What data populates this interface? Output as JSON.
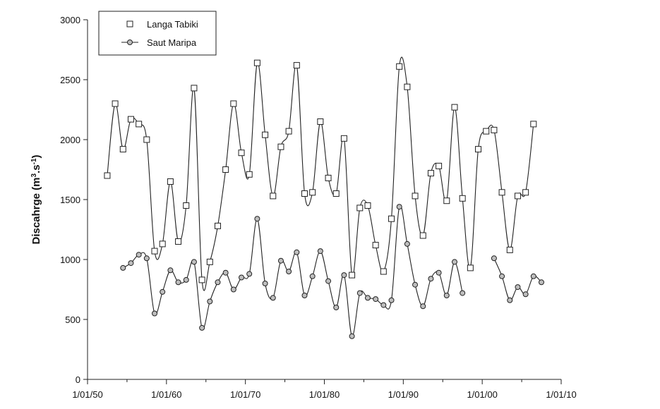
{
  "chart_data": {
    "type": "line",
    "title": "",
    "xlabel": "",
    "ylabel": "Discahrge (m3.s-1)",
    "ylabel_parts": {
      "main": "Discahrge (m",
      "sup1": "3",
      "mid": ".s",
      "sup2": "-1",
      "end": ")"
    },
    "xlim": [
      "1950-01-01",
      "2010-01-01"
    ],
    "ylim": [
      0,
      3000
    ],
    "x_ticks": [
      {
        "date": "1950-01-01",
        "label": "1/01/50"
      },
      {
        "date": "1960-01-01",
        "label": "1/01/60"
      },
      {
        "date": "1970-01-01",
        "label": "1/01/70"
      },
      {
        "date": "1980-01-01",
        "label": "1/01/80"
      },
      {
        "date": "1990-01-01",
        "label": "1/01/90"
      },
      {
        "date": "2000-01-01",
        "label": "1/01/00"
      },
      {
        "date": "2010-01-01",
        "label": "1/01/10"
      }
    ],
    "y_ticks": [
      "0",
      "500",
      "1000",
      "1500",
      "2000",
      "2500",
      "3000"
    ],
    "grid": false,
    "legend_position": "top-left",
    "series": [
      {
        "name": "Langa Tabiki",
        "marker": "square",
        "segments": [
          [
            [
              "1952-07-01",
              1700
            ],
            [
              "1953-07-01",
              2300
            ],
            [
              "1954-07-01",
              1920
            ],
            [
              "1955-07-01",
              2170
            ],
            [
              "1956-07-01",
              2130
            ],
            [
              "1957-07-01",
              2000
            ],
            [
              "1958-07-01",
              1070
            ],
            [
              "1959-07-01",
              1130
            ],
            [
              "1960-07-01",
              1650
            ],
            [
              "1961-07-01",
              1150
            ],
            [
              "1962-07-01",
              1450
            ],
            [
              "1963-07-01",
              2430
            ],
            [
              "1964-07-01",
              830
            ],
            [
              "1965-07-01",
              980
            ],
            [
              "1966-07-01",
              1280
            ],
            [
              "1967-07-01",
              1750
            ],
            [
              "1968-07-01",
              2300
            ],
            [
              "1969-07-01",
              1890
            ],
            [
              "1970-07-01",
              1710
            ],
            [
              "1971-07-01",
              2640
            ],
            [
              "1972-07-01",
              2040
            ],
            [
              "1973-07-01",
              1530
            ],
            [
              "1974-07-01",
              1940
            ],
            [
              "1975-07-01",
              2070
            ],
            [
              "1976-07-01",
              2620
            ],
            [
              "1977-07-01",
              1550
            ],
            [
              "1978-07-01",
              1560
            ],
            [
              "1979-07-01",
              2150
            ],
            [
              "1980-07-01",
              1680
            ],
            [
              "1981-07-01",
              1550
            ],
            [
              "1982-07-01",
              2010
            ],
            [
              "1983-07-01",
              870
            ],
            [
              "1984-07-01",
              1430
            ],
            [
              "1985-07-01",
              1450
            ],
            [
              "1986-07-01",
              1120
            ],
            [
              "1987-07-01",
              900
            ],
            [
              "1988-07-01",
              1340
            ],
            [
              "1989-07-01",
              2610
            ],
            [
              "1990-07-01",
              2440
            ],
            [
              "1991-07-01",
              1530
            ],
            [
              "1992-07-01",
              1200
            ],
            [
              "1993-07-01",
              1720
            ],
            [
              "1994-07-01",
              1780
            ],
            [
              "1995-07-01",
              1490
            ],
            [
              "1996-07-01",
              2270
            ],
            [
              "1997-07-01",
              1510
            ],
            [
              "1998-07-01",
              930
            ],
            [
              "1999-07-01",
              1920
            ],
            [
              "2000-07-01",
              2070
            ],
            [
              "2001-07-01",
              2080
            ],
            [
              "2002-07-01",
              1560
            ],
            [
              "2003-07-01",
              1080
            ],
            [
              "2004-07-01",
              1530
            ],
            [
              "2005-07-01",
              1560
            ],
            [
              "2006-07-01",
              2130
            ]
          ]
        ]
      },
      {
        "name": "Saut Maripa",
        "marker": "circle",
        "segments": [
          [
            [
              "1954-07-01",
              930
            ],
            [
              "1955-07-01",
              970
            ],
            [
              "1956-07-01",
              1040
            ],
            [
              "1957-07-01",
              1010
            ],
            [
              "1958-07-01",
              550
            ],
            [
              "1959-07-01",
              730
            ],
            [
              "1960-07-01",
              910
            ],
            [
              "1961-07-01",
              810
            ],
            [
              "1962-07-01",
              830
            ],
            [
              "1963-07-01",
              980
            ],
            [
              "1964-07-01",
              430
            ],
            [
              "1965-07-01",
              650
            ],
            [
              "1966-07-01",
              810
            ],
            [
              "1967-07-01",
              890
            ],
            [
              "1968-07-01",
              750
            ],
            [
              "1969-07-01",
              850
            ],
            [
              "1970-07-01",
              880
            ],
            [
              "1971-07-01",
              1340
            ],
            [
              "1972-07-01",
              800
            ],
            [
              "1973-07-01",
              680
            ],
            [
              "1974-07-01",
              990
            ],
            [
              "1975-07-01",
              900
            ],
            [
              "1976-07-01",
              1060
            ],
            [
              "1977-07-01",
              700
            ],
            [
              "1978-07-01",
              860
            ],
            [
              "1979-07-01",
              1070
            ],
            [
              "1980-07-01",
              820
            ],
            [
              "1981-07-01",
              600
            ],
            [
              "1982-07-01",
              870
            ],
            [
              "1983-07-01",
              360
            ],
            [
              "1984-07-01",
              720
            ],
            [
              "1985-07-01",
              680
            ],
            [
              "1986-07-01",
              670
            ],
            [
              "1987-07-01",
              620
            ],
            [
              "1988-07-01",
              660
            ],
            [
              "1989-07-01",
              1440
            ],
            [
              "1990-07-01",
              1130
            ],
            [
              "1991-07-01",
              790
            ],
            [
              "1992-07-01",
              610
            ],
            [
              "1993-07-01",
              840
            ],
            [
              "1994-07-01",
              890
            ],
            [
              "1995-07-01",
              700
            ],
            [
              "1996-07-01",
              980
            ],
            [
              "1997-07-01",
              720
            ]
          ],
          [
            [
              "2001-07-01",
              1010
            ],
            [
              "2002-07-01",
              860
            ],
            [
              "2003-07-01",
              660
            ],
            [
              "2004-07-01",
              770
            ],
            [
              "2005-07-01",
              710
            ],
            [
              "2006-07-01",
              860
            ],
            [
              "2007-07-01",
              810
            ]
          ]
        ]
      }
    ]
  }
}
